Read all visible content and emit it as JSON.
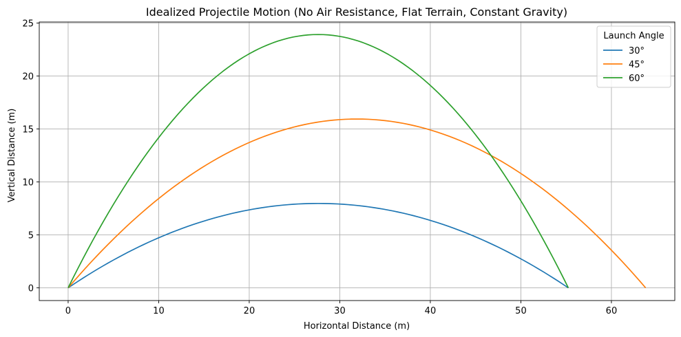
{
  "chart_data": {
    "type": "line",
    "title": "Idealized Projectile Motion (No Air Resistance, Flat Terrain, Constant Gravity)",
    "xlabel": "Horizontal Distance (m)",
    "ylabel": "Vertical Distance (m)",
    "xlim": [
      -3.19,
      67.0
    ],
    "ylim": [
      -1.2,
      25.1
    ],
    "x_ticks": [
      0,
      10,
      20,
      30,
      40,
      50,
      60
    ],
    "y_ticks": [
      0,
      5,
      10,
      15,
      20,
      25
    ],
    "grid": true,
    "legend": {
      "title": "Launch Angle",
      "placement": "top-right"
    },
    "series": [
      {
        "name": "30°",
        "color": "#1f77b4",
        "range": 55.24,
        "max_height": 7.97
      },
      {
        "name": "45°",
        "color": "#ff7f0e",
        "range": 63.78,
        "max_height": 15.94
      },
      {
        "name": "60°",
        "color": "#2ca02c",
        "range": 55.24,
        "max_height": 23.92
      }
    ]
  }
}
